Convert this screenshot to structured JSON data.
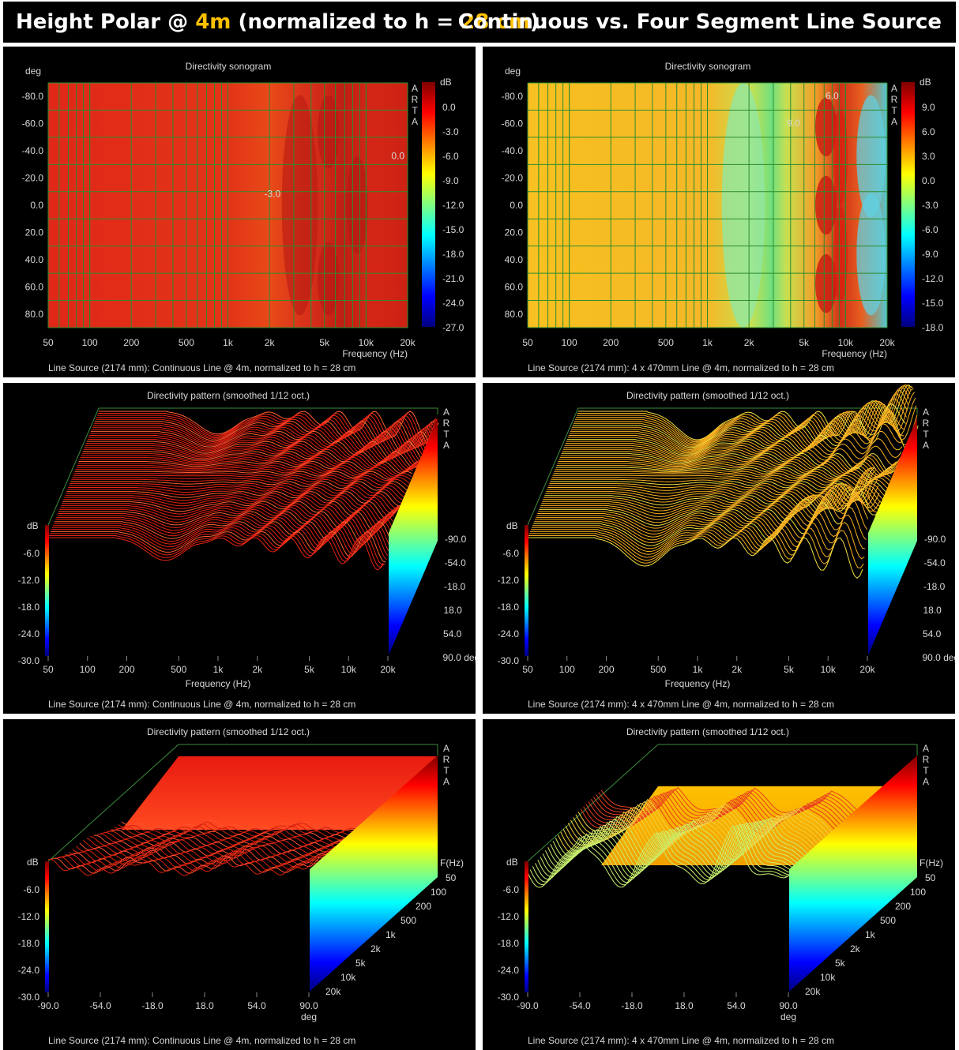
{
  "banner": {
    "part1": "Height Polar @ ",
    "part2": "4m",
    "part3": " (normalized to h = ",
    "part4": "28 cm",
    "part5": "):",
    "right": "Continuous vs. Four Segment Line Source"
  },
  "watermark": [
    "A",
    "R",
    "T",
    "A"
  ],
  "sonogram_y_ticks": [
    "-80.0",
    "-60.0",
    "-40.0",
    "-20.0",
    "0.0",
    "20.0",
    "40.0",
    "60.0",
    "80.0"
  ],
  "freq_ticks": [
    "50",
    "100",
    "200",
    "500",
    "1k",
    "2k",
    "5k",
    "10k",
    "20k"
  ],
  "freq_ticks_side": [
    "50",
    "100",
    "200",
    "500",
    "1k",
    "2k",
    "5k",
    "10k",
    "20k"
  ],
  "angle_ticks": [
    "-90.0",
    "-54.0",
    "-18.0",
    "18.0",
    "54.0",
    "90.0"
  ],
  "db_ticks_3d": [
    "-6.0",
    "-12.0",
    "-18.0",
    "-24.0",
    "-30.0"
  ],
  "colors": {
    "accent": "#ffc000",
    "grid": "#2e8b2e",
    "text": "#d8d8d8",
    "frame": "#3c8c3c"
  },
  "chart_data": [
    {
      "id": "p1",
      "type": "heatmap",
      "subtitle": "Directivity sonogram",
      "ylabel": "deg",
      "xlabel": "Frequency (Hz)",
      "scale_label": "dB",
      "x_scale": "log",
      "xlim": [
        50,
        20000
      ],
      "ylim": [
        -90,
        90
      ],
      "colorbar": [
        "0.0",
        "-3.0",
        "-6.0",
        "-9.0",
        "-12.0",
        "-15.0",
        "-18.0",
        "-21.0",
        "-24.0",
        "-27.0"
      ],
      "colorbar_range": [
        -27,
        3
      ],
      "annotations": [
        {
          "text": "0.0",
          "f": 17000,
          "deg": -34
        },
        {
          "text": "-3.0",
          "f": 2100,
          "deg": -6
        }
      ],
      "caption": "Line Source (2174 mm): Continuous Line @ 4m, normalized to h = 28 cm"
    },
    {
      "id": "p2",
      "type": "heatmap",
      "subtitle": "Directivity sonogram",
      "ylabel": "deg",
      "xlabel": "Frequency (Hz)",
      "scale_label": "dB",
      "x_scale": "log",
      "xlim": [
        50,
        20000
      ],
      "ylim": [
        -90,
        90
      ],
      "colorbar": [
        "9.0",
        "6.0",
        "3.0",
        "0.0",
        "-3.0",
        "-6.0",
        "-9.0",
        "-12.0",
        "-15.0",
        "-18.0"
      ],
      "colorbar_range": [
        -18,
        12
      ],
      "annotations": [
        {
          "text": "9.0",
          "f": 4200,
          "deg": -58
        },
        {
          "text": "6.0",
          "f": 8000,
          "deg": -78
        }
      ],
      "caption": "Line Source (2174 mm): 4 x 470mm Line @ 4m, normalized to h = 28 cm"
    },
    {
      "id": "p3",
      "type": "line",
      "subtitle": "Directivity pattern (smoothed 1/12 oct.)",
      "xlabel": "Frequency (Hz)",
      "ylabel": "dB",
      "x_scale": "log",
      "xlim": [
        50,
        20000
      ],
      "ylim": [
        -30,
        0
      ],
      "depth_label": "deg",
      "caption": "Line Source (2174 mm): Continuous Line @ 4m, normalized to h = 28 cm"
    },
    {
      "id": "p4",
      "type": "line",
      "subtitle": "Directivity pattern (smoothed 1/12 oct.)",
      "xlabel": "Frequency (Hz)",
      "ylabel": "dB",
      "x_scale": "log",
      "xlim": [
        50,
        20000
      ],
      "ylim": [
        -30,
        0
      ],
      "depth_label": "deg",
      "caption": "Line Source (2174 mm): 4 x 470mm Line @ 4m, normalized to h = 28 cm"
    },
    {
      "id": "p5",
      "type": "line",
      "subtitle": "Directivity pattern (smoothed 1/12 oct.)",
      "xlabel": "deg",
      "ylabel": "dB",
      "xlim": [
        -90,
        90
      ],
      "ylim": [
        -30,
        0
      ],
      "depth_label": "F(Hz)",
      "caption": "Line Source (2174 mm): Continuous Line @ 4m, normalized to h = 28 cm"
    },
    {
      "id": "p6",
      "type": "line",
      "subtitle": "Directivity pattern (smoothed 1/12 oct.)",
      "xlabel": "deg",
      "ylabel": "dB",
      "xlim": [
        -90,
        90
      ],
      "ylim": [
        -30,
        0
      ],
      "depth_label": "F(Hz)",
      "caption": "Line Source (2174 mm): 4 x 470mm Line @ 4m, normalized to h = 28 cm"
    }
  ]
}
